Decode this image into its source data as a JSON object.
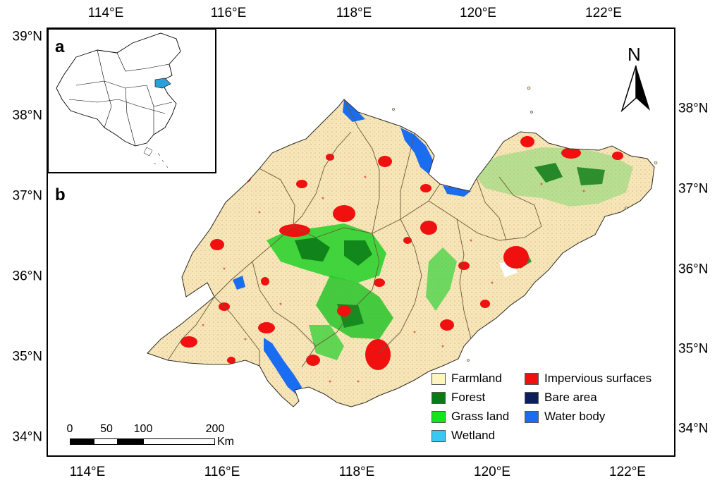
{
  "axes": {
    "top_ticks": [
      "114°E",
      "116°E",
      "118°E",
      "120°E",
      "122°E"
    ],
    "bottom_ticks": [
      "114°E",
      "116°E",
      "118°E",
      "120°E",
      "122°E"
    ],
    "left_ticks": [
      "39°N",
      "38°N",
      "37°N",
      "36°N",
      "35°N",
      "34°N"
    ],
    "right_ticks": [
      "38°N",
      "37°N",
      "36°N",
      "35°N",
      "34°N"
    ]
  },
  "panels": {
    "inset_label": "a",
    "main_label": "b"
  },
  "north_arrow": {
    "label": "N"
  },
  "legend": {
    "items": [
      {
        "label": "Farmland",
        "color": "#fdf5c1"
      },
      {
        "label": "Forest",
        "color": "#0b7a16"
      },
      {
        "label": "Grass land",
        "color": "#11e51b"
      },
      {
        "label": "Wetland",
        "color": "#39c9f0"
      },
      {
        "label": "Impervious surfaces",
        "color": "#f01010"
      },
      {
        "label": "Bare area",
        "color": "#0b1f5c"
      },
      {
        "label": "Water body",
        "color": "#1a6cf0"
      }
    ]
  },
  "scale_bar": {
    "ticks": [
      "0",
      "50",
      "100",
      "200"
    ],
    "unit": "Km"
  },
  "colors": {
    "frame": "#000000",
    "province_boundary": "#6b5a3a",
    "highlight_region": "#2aa0d8"
  }
}
